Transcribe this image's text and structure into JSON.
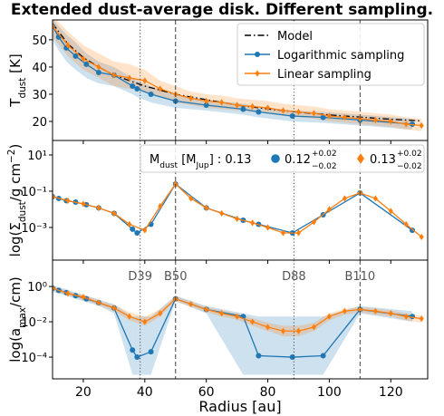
{
  "chart_data": [
    {
      "type": "line",
      "title": "Extended dust-average disk. Different sampling.",
      "ylabel": [
        {
          "text": "T"
        },
        {
          "text": "dust",
          "script": "sub"
        },
        {
          "text": " [K]"
        }
      ],
      "xlim": [
        10,
        132
      ],
      "ylim": [
        13,
        57.3
      ],
      "yticks": [
        20,
        30,
        40,
        50
      ],
      "log_y": false,
      "legend": "upper right",
      "rings": [
        {
          "radius": 38.5,
          "style": "dotted"
        },
        {
          "radius": 50,
          "style": "dashed"
        },
        {
          "radius": 88.5,
          "style": "dotted"
        },
        {
          "radius": 110,
          "style": "dashed"
        }
      ],
      "series": [
        {
          "name": "Model",
          "color": "#000000",
          "linestyle": "dashdot",
          "marker": null,
          "x": [
            10,
            15,
            20,
            25,
            30,
            35,
            40,
            45,
            50,
            55,
            60,
            65,
            70,
            75,
            80,
            85,
            90,
            95,
            100,
            105,
            110,
            115,
            120,
            125,
            130
          ],
          "values": [
            56,
            48.5,
            43.5,
            40,
            37,
            35,
            33,
            31.5,
            30,
            29,
            28,
            27,
            26,
            25.3,
            24.6,
            24,
            23.4,
            22.9,
            22.4,
            22,
            21.6,
            21.2,
            20.8,
            20.5,
            20.2
          ]
        },
        {
          "name": "Logarithmic sampling",
          "color": "#1f77b4",
          "linestyle": "solid",
          "marker": "circle",
          "x": [
            10,
            12,
            14.5,
            17.5,
            21,
            25,
            30,
            36,
            37.5,
            42,
            50,
            60,
            72,
            77,
            88,
            98,
            110,
            127
          ],
          "values": [
            55,
            51,
            47,
            44,
            41,
            38,
            37,
            33,
            32,
            30,
            27.5,
            26,
            24.5,
            23.5,
            22,
            21.5,
            20.5,
            19
          ],
          "lower": [
            50,
            46,
            42,
            39,
            36,
            34,
            33,
            30,
            29,
            27,
            25,
            24,
            22.5,
            21.5,
            20,
            19.5,
            18.5,
            17
          ],
          "upper": [
            58,
            55,
            52,
            49,
            45,
            42,
            40,
            36,
            35,
            33,
            30,
            28,
            26.5,
            25.5,
            24,
            23.5,
            22.5,
            21
          ]
        },
        {
          "name": "Linear sampling",
          "color": "#ff7f0e",
          "linestyle": "solid",
          "marker": "diamond",
          "x": [
            10,
            15,
            20,
            25,
            30,
            35,
            40,
            45,
            50,
            55,
            60,
            65,
            70,
            75,
            80,
            85,
            90,
            95,
            100,
            105,
            110,
            115,
            120,
            125,
            130
          ],
          "values": [
            55,
            48,
            43,
            40,
            37,
            36,
            35,
            32,
            30,
            28.5,
            27.5,
            27,
            26,
            25.5,
            25,
            24,
            23.5,
            23,
            22,
            21.5,
            21,
            20.5,
            20,
            19,
            18.5
          ],
          "lower": [
            51,
            44,
            39,
            36,
            33,
            32,
            31,
            29,
            27,
            26,
            25,
            24.5,
            24,
            23.5,
            23,
            22,
            21.5,
            21,
            20,
            19.5,
            19,
            18.5,
            18,
            17,
            16.5
          ],
          "upper": [
            59,
            53,
            48,
            45,
            42,
            41,
            39,
            35,
            33,
            31,
            30,
            29.5,
            28.5,
            28,
            27.5,
            26.5,
            26,
            25.5,
            24.5,
            24,
            23.5,
            23,
            22.5,
            21.5,
            21
          ]
        }
      ]
    },
    {
      "type": "line",
      "ylabel": [
        {
          "text": "log(Σ"
        },
        {
          "text": "dust",
          "script": "sub"
        },
        {
          "text": "/g cm"
        },
        {
          "text": "−2",
          "script": "sup"
        },
        {
          "text": ")"
        }
      ],
      "xlim": [
        10,
        132
      ],
      "ylim": [
        1.58e-05,
        63
      ],
      "log_y": true,
      "yticks": [
        {
          "value": 10,
          "label": "10¹"
        },
        {
          "value": 0.1,
          "label": "10⁻¹"
        },
        {
          "value": 0.001,
          "label": "10⁻³"
        }
      ],
      "annotation": [
        {
          "text": "M"
        },
        {
          "text": "dust",
          "script": "sub"
        },
        {
          "text": " [M"
        },
        {
          "text": "Jup",
          "script": "sub"
        },
        {
          "text": "] : 0.13"
        }
      ],
      "rings": [
        {
          "radius": 38.5,
          "style": "dotted"
        },
        {
          "radius": 50,
          "style": "dashed"
        },
        {
          "radius": 88.5,
          "style": "dotted"
        },
        {
          "radius": 110,
          "style": "dashed"
        }
      ],
      "series": [
        {
          "color": "#1f77b4",
          "linestyle": "solid",
          "marker": "circle",
          "fit": "0.12",
          "fit_plus": "+0.02",
          "fit_minus": "−0.02",
          "x": [
            10,
            12,
            14.5,
            17.5,
            21,
            25,
            30,
            36,
            37.5,
            42,
            50,
            60,
            72,
            77,
            88,
            98,
            110,
            127
          ],
          "values": [
            0.05,
            0.04,
            0.03,
            0.025,
            0.018,
            0.012,
            0.006,
            0.0008,
            0.0005,
            0.0015,
            0.25,
            0.012,
            0.0025,
            0.0015,
            0.0005,
            0.005,
            0.08,
            0.0007
          ]
        },
        {
          "color": "#ff7f0e",
          "linestyle": "solid",
          "marker": "diamond",
          "fit": "0.13",
          "fit_plus": "+0.02",
          "fit_minus": "−0.02",
          "x": [
            10,
            15,
            20,
            25,
            30,
            35,
            40,
            45,
            50,
            55,
            60,
            65,
            70,
            75,
            80,
            85,
            90,
            95,
            100,
            105,
            110,
            115,
            120,
            125,
            130
          ],
          "values": [
            0.05,
            0.03,
            0.02,
            0.012,
            0.006,
            0.0015,
            0.0007,
            0.015,
            0.25,
            0.04,
            0.012,
            0.006,
            0.003,
            0.0018,
            0.001,
            0.0005,
            0.0005,
            0.002,
            0.01,
            0.04,
            0.08,
            0.04,
            0.008,
            0.0015,
            0.0003
          ]
        }
      ]
    },
    {
      "type": "line",
      "ylabel": [
        {
          "text": "log(a"
        },
        {
          "text": "max",
          "script": "sub"
        },
        {
          "text": "/cm)"
        }
      ],
      "xlabel": "Radius [au]",
      "xlim": [
        10,
        132
      ],
      "xticks": [
        20,
        40,
        60,
        80,
        100,
        120
      ],
      "ylim": [
        5.9e-06,
        31
      ],
      "log_y": true,
      "yticks": [
        {
          "value": 1,
          "label": "10⁰"
        },
        {
          "value": 0.01,
          "label": "10⁻²"
        },
        {
          "value": 0.0001,
          "label": "10⁻⁴"
        }
      ],
      "rings": [
        {
          "radius": 38.5,
          "style": "dotted",
          "label": "D39"
        },
        {
          "radius": 50,
          "style": "dashed",
          "label": "B50"
        },
        {
          "radius": 88.5,
          "style": "dotted",
          "label": "D88"
        },
        {
          "radius": 110,
          "style": "dashed",
          "label": "B110"
        }
      ],
      "series": [
        {
          "color": "#1f77b4",
          "linestyle": "solid",
          "marker": "circle",
          "x": [
            10,
            12,
            14.5,
            17.5,
            21,
            25,
            30,
            36,
            37.5,
            42,
            50,
            60,
            72,
            77,
            88,
            98,
            110,
            127
          ],
          "values": [
            0.8,
            0.6,
            0.45,
            0.3,
            0.2,
            0.12,
            0.06,
            0.00025,
            0.0001,
            0.0002,
            0.2,
            0.05,
            0.02,
            0.00012,
            0.0001,
            0.00012,
            0.05,
            0.02
          ],
          "lower": [
            0.5,
            0.4,
            0.3,
            0.2,
            0.13,
            0.08,
            0.03,
            1e-05,
            1e-05,
            1e-05,
            0.15,
            0.03,
            1e-05,
            1e-05,
            1e-05,
            1e-05,
            0.03,
            0.01
          ],
          "upper": [
            1.2,
            0.9,
            0.7,
            0.45,
            0.3,
            0.18,
            0.1,
            0.02,
            0.02,
            0.02,
            0.3,
            0.08,
            0.03,
            0.02,
            0.02,
            0.02,
            0.08,
            0.04
          ]
        },
        {
          "color": "#ff7f0e",
          "linestyle": "solid",
          "marker": "diamond",
          "x": [
            10,
            15,
            20,
            25,
            30,
            35,
            40,
            45,
            50,
            55,
            60,
            65,
            70,
            75,
            80,
            85,
            90,
            95,
            100,
            105,
            110,
            115,
            120,
            125,
            130
          ],
          "values": [
            0.8,
            0.4,
            0.25,
            0.12,
            0.06,
            0.02,
            0.01,
            0.03,
            0.2,
            0.1,
            0.05,
            0.03,
            0.02,
            0.01,
            0.005,
            0.003,
            0.003,
            0.005,
            0.02,
            0.04,
            0.05,
            0.04,
            0.03,
            0.02,
            0.015
          ],
          "lower": [
            0.6,
            0.3,
            0.18,
            0.09,
            0.04,
            0.012,
            0.006,
            0.02,
            0.15,
            0.07,
            0.035,
            0.02,
            0.013,
            0.006,
            0.003,
            0.0015,
            0.0015,
            0.003,
            0.012,
            0.025,
            0.035,
            0.025,
            0.02,
            0.012,
            0.009
          ],
          "upper": [
            1.1,
            0.55,
            0.35,
            0.17,
            0.09,
            0.035,
            0.02,
            0.05,
            0.28,
            0.14,
            0.07,
            0.045,
            0.03,
            0.016,
            0.009,
            0.006,
            0.006,
            0.009,
            0.03,
            0.055,
            0.07,
            0.055,
            0.045,
            0.03,
            0.022
          ]
        }
      ]
    }
  ]
}
